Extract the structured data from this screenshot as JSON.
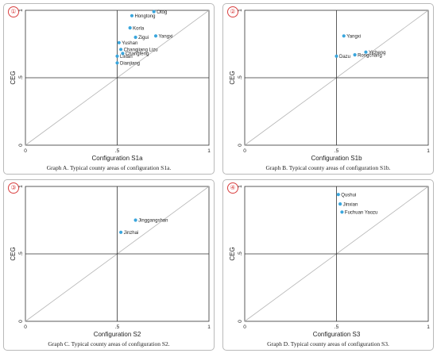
{
  "chart_data": [
    {
      "type": "scatter",
      "badge": "①",
      "caption": "Graph A. Typical county areas of configuration S1a.",
      "xlabel": "Configuration S1a",
      "ylabel": "CEG",
      "xlim": [
        0,
        1
      ],
      "ylim": [
        0,
        1
      ],
      "x_ticks": [
        "0",
        ".5",
        "1"
      ],
      "y_ticks": [
        "0",
        ".5",
        "1"
      ],
      "points": [
        {
          "label": "Otog",
          "x": 0.7,
          "y": 0.99
        },
        {
          "label": "Hongtong",
          "x": 0.58,
          "y": 0.96
        },
        {
          "label": "Korla",
          "x": 0.57,
          "y": 0.87
        },
        {
          "label": "Yangxi",
          "x": 0.71,
          "y": 0.81
        },
        {
          "label": "Zigui",
          "x": 0.6,
          "y": 0.8
        },
        {
          "label": "Yushan",
          "x": 0.51,
          "y": 0.76
        },
        {
          "label": "Changjiang Lizu",
          "x": 0.52,
          "y": 0.71
        },
        {
          "label": "Changfeng",
          "x": 0.53,
          "y": 0.68
        },
        {
          "label": "Lixian",
          "x": 0.5,
          "y": 0.66
        },
        {
          "label": "Dianjiang",
          "x": 0.5,
          "y": 0.61
        }
      ]
    },
    {
      "type": "scatter",
      "badge": "②",
      "caption": "Graph B. Typical county areas of configuration S1b.",
      "xlabel": "Configuration S1b",
      "ylabel": "CEG",
      "xlim": [
        0,
        1
      ],
      "ylim": [
        0,
        1
      ],
      "x_ticks": [
        "0",
        ".5",
        "1"
      ],
      "y_ticks": [
        "0",
        ".5",
        "1"
      ],
      "points": [
        {
          "label": "Yangxi",
          "x": 0.54,
          "y": 0.81
        },
        {
          "label": "Yicheng",
          "x": 0.66,
          "y": 0.69
        },
        {
          "label": "Rongchang",
          "x": 0.6,
          "y": 0.67
        },
        {
          "label": "Dazu",
          "x": 0.5,
          "y": 0.66
        }
      ]
    },
    {
      "type": "scatter",
      "badge": "③",
      "caption": "Graph C. Typical county areas of configuration S2.",
      "xlabel": "Configuration S2",
      "ylabel": "CEG",
      "xlim": [
        0,
        1
      ],
      "ylim": [
        0,
        1
      ],
      "x_ticks": [
        "0",
        ".5",
        "1"
      ],
      "y_ticks": [
        "0",
        ".5",
        "1"
      ],
      "points": [
        {
          "label": "Jinggangshan",
          "x": 0.6,
          "y": 0.75
        },
        {
          "label": "Jinzhai",
          "x": 0.52,
          "y": 0.66
        }
      ]
    },
    {
      "type": "scatter",
      "badge": "④",
      "caption": "Graph D. Typical county areas of configuration S3.",
      "xlabel": "Configuration S3",
      "ylabel": "CEG",
      "xlim": [
        0,
        1
      ],
      "ylim": [
        0,
        1
      ],
      "x_ticks": [
        "0",
        ".5",
        "1"
      ],
      "y_ticks": [
        "0",
        ".5",
        "1"
      ],
      "points": [
        {
          "label": "Qushui",
          "x": 0.51,
          "y": 0.94
        },
        {
          "label": "Jinxian",
          "x": 0.52,
          "y": 0.87
        },
        {
          "label": "Fuchuan Yaozu",
          "x": 0.53,
          "y": 0.81
        }
      ]
    }
  ],
  "colors": {
    "point": "#3aa6dd",
    "axis": "#333333",
    "grid": "#333333",
    "diagonal": "#b5b5b5"
  }
}
